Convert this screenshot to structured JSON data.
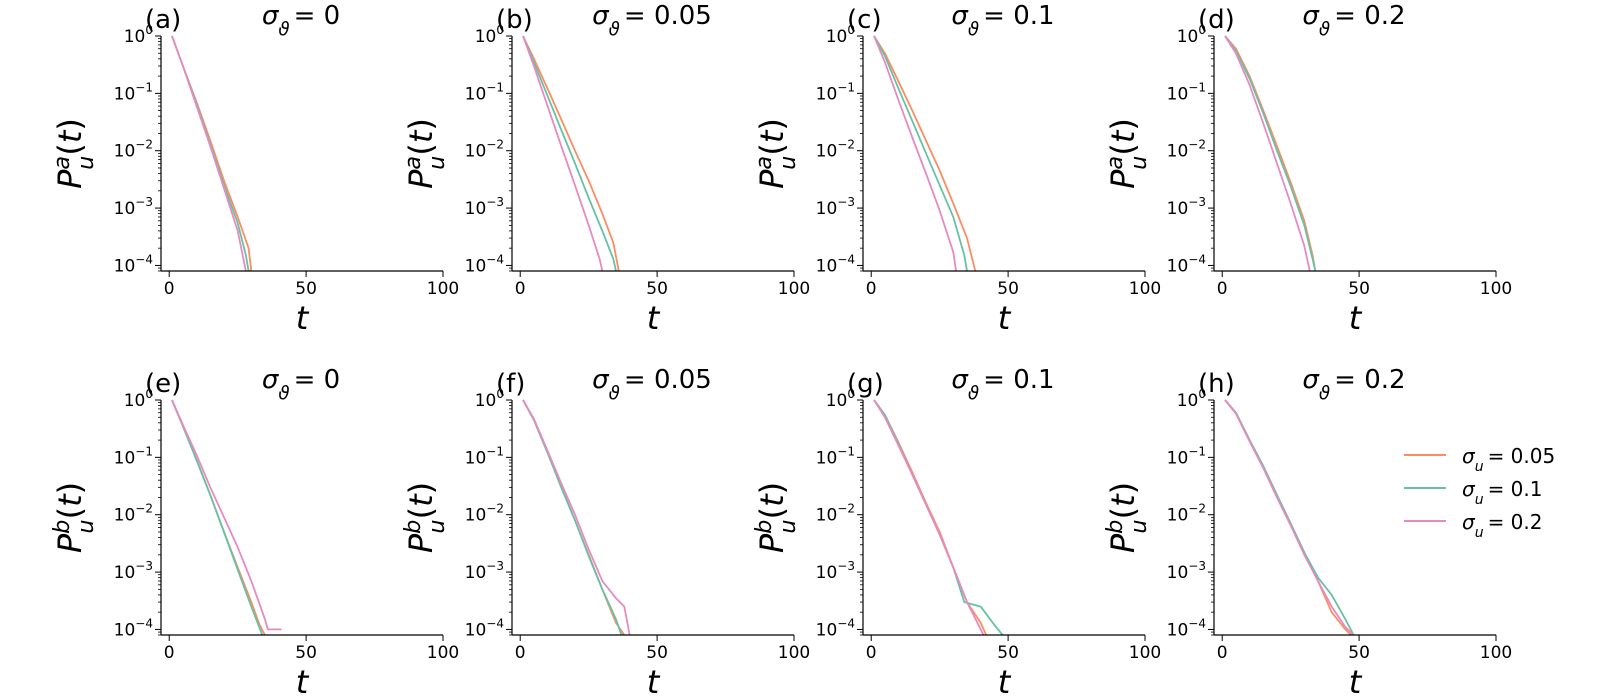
{
  "chart_data": {
    "type": "line",
    "xlim": [
      0,
      100
    ],
    "ylim": [
      8e-05,
      1
    ],
    "y_scale": "log",
    "x_ticks": [
      0,
      50,
      100
    ],
    "y_ticks": [
      {
        "value": 1,
        "mantissa": "10",
        "exponent": "0"
      },
      {
        "value": 0.1,
        "mantissa": "10",
        "exponent": "−1"
      },
      {
        "value": 0.01,
        "mantissa": "10",
        "exponent": "−2"
      },
      {
        "value": 0.001,
        "mantissa": "10",
        "exponent": "−3"
      },
      {
        "value": 0.0001,
        "mantissa": "10",
        "exponent": "−4"
      }
    ],
    "xlabel": "t",
    "legend": {
      "placement": "right of panel (h)",
      "entries": [
        {
          "label": "σ_u = 0.05",
          "color": "#fc8d62"
        },
        {
          "label": "σ_u = 0.1",
          "color": "#66c2a5"
        },
        {
          "label": "σ_u = 0.2",
          "color": "#e78ac3"
        }
      ]
    },
    "panels": [
      {
        "label": "(a)",
        "title": "σ_ϑ = 0",
        "ylabel_sup": "a",
        "series": [
          {
            "name": "σ_u = 0.05",
            "color": "#fc8d62",
            "x": [
              1,
              5,
              10,
              15,
              20,
              25,
              29,
              30
            ],
            "y": [
              1,
              0.3,
              0.07,
              0.015,
              0.003,
              0.0007,
              0.0002,
              8e-05
            ]
          },
          {
            "name": "σ_u = 0.1",
            "color": "#66c2a5",
            "x": [
              1,
              5,
              10,
              15,
              20,
              25,
              28,
              29
            ],
            "y": [
              1,
              0.3,
              0.065,
              0.013,
              0.0025,
              0.00055,
              0.00015,
              8e-05
            ]
          },
          {
            "name": "σ_u = 0.2",
            "color": "#e78ac3",
            "x": [
              1,
              5,
              10,
              15,
              20,
              25,
              28
            ],
            "y": [
              1,
              0.3,
              0.06,
              0.012,
              0.0022,
              0.0004,
              8e-05
            ]
          }
        ]
      },
      {
        "label": "(b)",
        "title": "σ_ϑ = 0.05",
        "ylabel_sup": "a",
        "series": [
          {
            "name": "σ_u = 0.05",
            "color": "#fc8d62",
            "x": [
              1,
              5,
              10,
              15,
              20,
              25,
              30,
              34,
              36
            ],
            "y": [
              1,
              0.4,
              0.12,
              0.035,
              0.01,
              0.003,
              0.0008,
              0.00025,
              8e-05
            ]
          },
          {
            "name": "σ_u = 0.1",
            "color": "#66c2a5",
            "x": [
              1,
              5,
              10,
              15,
              20,
              25,
              30,
              34,
              35
            ],
            "y": [
              1,
              0.35,
              0.09,
              0.023,
              0.006,
              0.0015,
              0.0004,
              0.00013,
              8e-05
            ]
          },
          {
            "name": "σ_u = 0.2",
            "color": "#e78ac3",
            "x": [
              1,
              5,
              10,
              15,
              20,
              25,
              29,
              30
            ],
            "y": [
              1,
              0.3,
              0.06,
              0.012,
              0.0025,
              0.0005,
              0.00013,
              8e-05
            ]
          }
        ]
      },
      {
        "label": "(c)",
        "title": "σ_ϑ = 0.1",
        "ylabel_sup": "a",
        "series": [
          {
            "name": "σ_u = 0.05",
            "color": "#fc8d62",
            "x": [
              1,
              5,
              10,
              15,
              20,
              25,
              30,
              35,
              38
            ],
            "y": [
              1,
              0.5,
              0.16,
              0.05,
              0.015,
              0.0045,
              0.0012,
              0.0003,
              8e-05
            ]
          },
          {
            "name": "σ_u = 0.1",
            "color": "#66c2a5",
            "x": [
              1,
              5,
              10,
              15,
              20,
              25,
              30,
              34,
              35
            ],
            "y": [
              1,
              0.45,
              0.12,
              0.033,
              0.009,
              0.0025,
              0.0007,
              0.00015,
              8e-05
            ]
          },
          {
            "name": "σ_u = 0.2",
            "color": "#e78ac3",
            "x": [
              1,
              5,
              10,
              15,
              20,
              25,
              30,
              31
            ],
            "y": [
              1,
              0.35,
              0.075,
              0.017,
              0.004,
              0.0009,
              0.00017,
              8e-05
            ]
          }
        ]
      },
      {
        "label": "(d)",
        "title": "σ_ϑ = 0.2",
        "ylabel_sup": "a",
        "series": [
          {
            "name": "σ_u = 0.05",
            "color": "#fc8d62",
            "x": [
              1,
              5,
              10,
              15,
              20,
              25,
              30,
              33,
              34
            ],
            "y": [
              1,
              0.6,
              0.2,
              0.05,
              0.012,
              0.0028,
              0.0006,
              0.00015,
              8e-05
            ]
          },
          {
            "name": "σ_u = 0.1",
            "color": "#66c2a5",
            "x": [
              1,
              5,
              10,
              15,
              20,
              25,
              30,
              33,
              34
            ],
            "y": [
              1,
              0.55,
              0.18,
              0.045,
              0.01,
              0.0024,
              0.0005,
              0.00013,
              8e-05
            ]
          },
          {
            "name": "σ_u = 0.2",
            "color": "#e78ac3",
            "x": [
              1,
              5,
              10,
              15,
              20,
              25,
              30,
              32
            ],
            "y": [
              1,
              0.5,
              0.14,
              0.03,
              0.006,
              0.0012,
              0.00022,
              8e-05
            ]
          }
        ]
      },
      {
        "label": "(e)",
        "title": "σ_ϑ = 0",
        "ylabel_sup": "b",
        "series": [
          {
            "name": "σ_u = 0.05",
            "color": "#fc8d62",
            "x": [
              1,
              5,
              10,
              15,
              20,
              25,
              30,
              33,
              35
            ],
            "y": [
              1,
              0.35,
              0.09,
              0.022,
              0.005,
              0.0012,
              0.0003,
              0.00012,
              8e-05
            ]
          },
          {
            "name": "σ_u = 0.1",
            "color": "#66c2a5",
            "x": [
              1,
              5,
              10,
              15,
              20,
              25,
              30,
              34
            ],
            "y": [
              1,
              0.35,
              0.09,
              0.022,
              0.005,
              0.0011,
              0.00025,
              8e-05
            ]
          },
          {
            "name": "σ_u = 0.2",
            "color": "#e78ac3",
            "x": [
              1,
              5,
              10,
              15,
              20,
              25,
              30,
              35,
              36,
              41
            ],
            "y": [
              1,
              0.37,
              0.11,
              0.03,
              0.009,
              0.0027,
              0.0007,
              0.00015,
              0.0001,
              0.0001
            ]
          }
        ]
      },
      {
        "label": "(f)",
        "title": "σ_ϑ = 0.05",
        "ylabel_sup": "b",
        "series": [
          {
            "name": "σ_u = 0.05",
            "color": "#fc8d62",
            "x": [
              1,
              5,
              10,
              15,
              20,
              25,
              30,
              35,
              38
            ],
            "y": [
              1,
              0.45,
              0.12,
              0.03,
              0.008,
              0.002,
              0.0005,
              0.00013,
              8e-05
            ]
          },
          {
            "name": "σ_u = 0.1",
            "color": "#66c2a5",
            "x": [
              1,
              5,
              10,
              15,
              20,
              25,
              30,
              35,
              37
            ],
            "y": [
              1,
              0.45,
              0.12,
              0.03,
              0.008,
              0.0019,
              0.0005,
              0.00015,
              8e-05
            ]
          },
          {
            "name": "σ_u = 0.2",
            "color": "#e78ac3",
            "x": [
              1,
              5,
              10,
              15,
              20,
              25,
              30,
              35,
              38,
              40
            ],
            "y": [
              1,
              0.47,
              0.13,
              0.035,
              0.01,
              0.0025,
              0.0007,
              0.00035,
              0.00025,
              8e-05
            ]
          }
        ]
      },
      {
        "label": "(g)",
        "title": "σ_ϑ = 0.1",
        "ylabel_sup": "b",
        "series": [
          {
            "name": "σ_u = 0.05",
            "color": "#fc8d62",
            "x": [
              1,
              5,
              10,
              15,
              20,
              25,
              30,
              35,
              40,
              42
            ],
            "y": [
              1,
              0.55,
              0.18,
              0.055,
              0.016,
              0.005,
              0.0012,
              0.0003,
              0.00013,
              8e-05
            ]
          },
          {
            "name": "σ_u = 0.1",
            "color": "#66c2a5",
            "x": [
              1,
              5,
              10,
              15,
              20,
              25,
              30,
              34,
              40,
              45,
              48
            ],
            "y": [
              1,
              0.55,
              0.17,
              0.05,
              0.015,
              0.0045,
              0.0012,
              0.0003,
              0.00025,
              0.00012,
              8e-05
            ]
          },
          {
            "name": "σ_u = 0.2",
            "color": "#e78ac3",
            "x": [
              1,
              5,
              10,
              15,
              20,
              25,
              30,
              35,
              40,
              41
            ],
            "y": [
              1,
              0.5,
              0.16,
              0.05,
              0.015,
              0.0045,
              0.0012,
              0.0003,
              0.0001,
              8e-05
            ]
          }
        ]
      },
      {
        "label": "(h)",
        "title": "σ_ϑ = 0.2",
        "ylabel_sup": "b",
        "series": [
          {
            "name": "σ_u = 0.05",
            "color": "#fc8d62",
            "x": [
              1,
              5,
              10,
              15,
              20,
              25,
              30,
              35,
              40,
              45,
              47
            ],
            "y": [
              1,
              0.6,
              0.2,
              0.07,
              0.022,
              0.007,
              0.0022,
              0.0007,
              0.0002,
              0.0001,
              8e-05
            ]
          },
          {
            "name": "σ_u = 0.1",
            "color": "#66c2a5",
            "x": [
              1,
              5,
              10,
              15,
              20,
              25,
              30,
              35,
              40,
              45,
              48
            ],
            "y": [
              1,
              0.6,
              0.2,
              0.07,
              0.022,
              0.007,
              0.0022,
              0.0008,
              0.0004,
              0.00015,
              8e-05
            ]
          },
          {
            "name": "σ_u = 0.2",
            "color": "#e78ac3",
            "x": [
              1,
              5,
              10,
              15,
              20,
              25,
              30,
              35,
              40,
              45,
              48
            ],
            "y": [
              1,
              0.58,
              0.19,
              0.065,
              0.02,
              0.0065,
              0.002,
              0.0007,
              0.00025,
              0.00011,
              8e-05
            ]
          }
        ]
      }
    ]
  }
}
